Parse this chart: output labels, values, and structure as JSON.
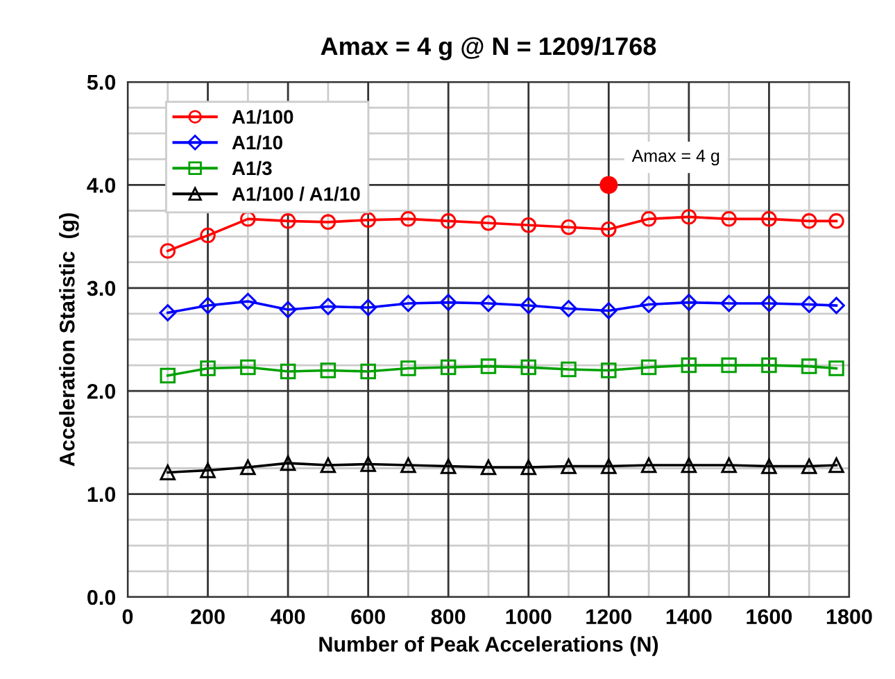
{
  "chart_data": {
    "type": "line",
    "title": "Amax = 4 g @ N = 1209/1768",
    "xlabel": "Number of Peak Accelerations (N)",
    "ylabel": "Acceleration Statistic  (g)",
    "x": [
      100,
      200,
      300,
      400,
      500,
      600,
      700,
      800,
      900,
      1000,
      1100,
      1200,
      1300,
      1400,
      1500,
      1600,
      1700,
      1768
    ],
    "series": [
      {
        "name": "A1/100",
        "color": "#ff0000",
        "marker": "circle",
        "values": [
          3.36,
          3.51,
          3.67,
          3.65,
          3.64,
          3.66,
          3.67,
          3.65,
          3.63,
          3.61,
          3.59,
          3.57,
          3.67,
          3.69,
          3.67,
          3.67,
          3.65,
          3.65
        ]
      },
      {
        "name": "A1/10",
        "color": "#0000ff",
        "marker": "diamond",
        "values": [
          2.76,
          2.83,
          2.87,
          2.79,
          2.82,
          2.81,
          2.85,
          2.86,
          2.85,
          2.83,
          2.8,
          2.78,
          2.84,
          2.86,
          2.85,
          2.85,
          2.84,
          2.83
        ]
      },
      {
        "name": "A1/3",
        "color": "#00a000",
        "marker": "square",
        "values": [
          2.15,
          2.22,
          2.23,
          2.19,
          2.2,
          2.19,
          2.22,
          2.23,
          2.24,
          2.23,
          2.21,
          2.2,
          2.23,
          2.25,
          2.25,
          2.25,
          2.24,
          2.22
        ]
      },
      {
        "name": "A1/100 / A1/10",
        "color": "#000000",
        "marker": "triangle",
        "values": [
          1.21,
          1.23,
          1.26,
          1.3,
          1.28,
          1.29,
          1.28,
          1.27,
          1.26,
          1.26,
          1.27,
          1.27,
          1.28,
          1.28,
          1.28,
          1.27,
          1.27,
          1.28
        ]
      },
      {
        "type": "scatter",
        "color": "#ff0000",
        "marker": "circle",
        "x": [
          1200
        ],
        "values": [
          4.0
        ]
      }
    ],
    "annotations": [
      {
        "text": "Amax = 4 g",
        "x": 1200,
        "y": 4.0
      }
    ],
    "xlim": [
      0,
      1800
    ],
    "xticks": [
      0,
      200,
      400,
      600,
      800,
      1000,
      1200,
      1400,
      1600,
      1800
    ],
    "ylim": [
      0,
      5
    ],
    "yticks": [
      {
        "value": 0,
        "label": "0.0"
      },
      {
        "value": 1,
        "label": "1.0"
      },
      {
        "value": 2,
        "label": "2.0"
      },
      {
        "value": 3,
        "label": "3.0"
      },
      {
        "value": 4,
        "label": "4.0"
      },
      {
        "value": 5,
        "label": "5.0"
      }
    ],
    "grid": true,
    "legend": "top left",
    "line_style": "solid"
  }
}
